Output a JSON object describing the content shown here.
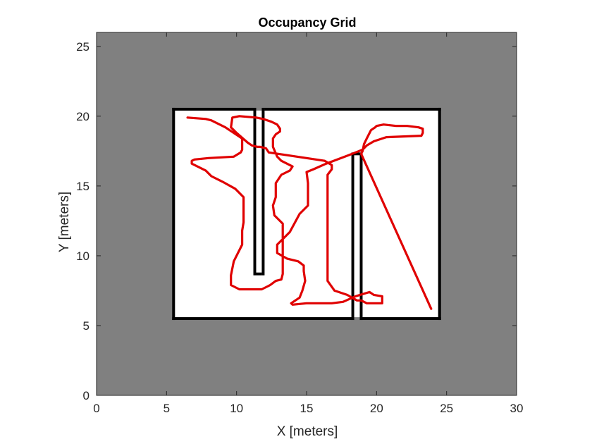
{
  "chart_data": {
    "type": "line",
    "title": "Occupancy Grid",
    "xlabel": "X [meters]",
    "ylabel": "Y [meters]",
    "xlim": [
      0,
      30
    ],
    "ylim": [
      0,
      26
    ],
    "xticks": [
      0,
      5,
      10,
      15,
      20,
      25,
      30
    ],
    "yticks": [
      0,
      5,
      10,
      15,
      20,
      25
    ],
    "grid": false,
    "colors": {
      "unknown": "#808080",
      "free": "#ffffff",
      "occupied": "#000000",
      "path": "#e00000"
    },
    "free_space": [
      5.6,
      5.6,
      24.4,
      20.4
    ],
    "walls": [
      [
        5.4,
        5.4,
        5.6,
        20.6
      ],
      [
        5.4,
        20.4,
        11.2,
        20.6
      ],
      [
        11.2,
        8.6,
        11.4,
        20.6
      ],
      [
        11.4,
        8.6,
        11.8,
        8.8
      ],
      [
        11.8,
        8.6,
        12.0,
        20.6
      ],
      [
        12.0,
        20.4,
        24.6,
        20.6
      ],
      [
        24.4,
        5.4,
        24.6,
        20.6
      ],
      [
        18.8,
        5.4,
        24.6,
        5.6
      ],
      [
        18.8,
        5.4,
        19.0,
        17.4
      ],
      [
        18.4,
        17.2,
        18.8,
        17.4
      ],
      [
        18.2,
        5.4,
        18.4,
        17.4
      ],
      [
        5.4,
        5.4,
        18.4,
        5.6
      ]
    ],
    "series": [
      {
        "x": [
          6.5,
          7.8,
          8.2,
          9.2,
          10.4,
          10.4,
          10.3,
          9.8,
          8.0,
          7.0,
          6.8,
          6.8,
          7.8,
          8.2,
          9.0,
          9.9,
          10.5,
          10.5,
          10.4,
          10.4,
          9.8,
          9.6,
          9.6,
          10.2,
          11.8,
          12.0,
          12.2,
          12.4,
          12.8,
          13.2,
          13.3,
          13.3,
          13.3,
          12.7,
          12.6,
          12.8,
          12.8,
          13.2,
          13.8,
          14.0,
          13.2,
          12.9,
          12.6,
          12.6,
          12.8,
          13.1,
          13.1,
          12.9,
          12.5,
          11.9,
          11.4,
          10.2,
          9.7,
          9.6,
          10.0,
          10.8,
          11.1,
          11.5,
          11.7,
          12.1,
          12.3,
          16.3,
          16.8,
          16.8,
          16.5,
          16.5,
          17.0,
          17.9,
          18.6,
          18.9,
          18.9,
          19.3,
          20.4,
          20.4,
          19.8,
          19.5,
          18.5,
          17.6,
          16.8,
          15.0,
          14.0,
          13.9,
          14.5,
          14.7,
          14.9,
          14.8,
          14.8,
          14.4,
          13.6,
          12.9,
          12.9,
          13.8,
          14.5,
          15.1,
          15.1,
          15.0,
          15.5,
          16.4,
          18.0,
          19.0,
          19.3,
          19.8,
          20.7,
          23.2,
          23.3,
          23.3,
          23.0,
          22.2,
          21.4,
          20.5,
          20.0,
          19.9,
          19.6,
          19.5,
          19.3,
          19.1,
          19.0,
          18.9,
          23.9
        ],
        "y": [
          19.9,
          19.8,
          19.7,
          19.2,
          18.4,
          17.6,
          17.4,
          17.1,
          17.0,
          16.9,
          16.8,
          16.6,
          16.1,
          15.7,
          15.3,
          14.8,
          14.2,
          12.4,
          11.8,
          10.8,
          9.6,
          8.6,
          7.9,
          7.6,
          7.6,
          7.7,
          7.8,
          7.9,
          8.2,
          8.3,
          8.7,
          11.0,
          12.3,
          12.9,
          13.6,
          14.2,
          15.2,
          15.8,
          16.1,
          16.4,
          16.8,
          17.1,
          17.8,
          18.4,
          18.7,
          18.9,
          19.1,
          19.4,
          19.6,
          19.8,
          19.9,
          20.0,
          19.9,
          19.2,
          18.8,
          18.1,
          17.9,
          17.8,
          17.8,
          17.7,
          17.4,
          16.8,
          16.5,
          16.2,
          15.8,
          8.2,
          7.5,
          7.2,
          6.8,
          6.8,
          6.8,
          6.6,
          6.6,
          7.1,
          7.2,
          7.4,
          7.1,
          6.7,
          6.6,
          6.6,
          6.5,
          6.6,
          7.0,
          7.5,
          8.2,
          8.9,
          9.3,
          9.6,
          9.8,
          10.2,
          10.8,
          11.7,
          13.0,
          13.6,
          15.2,
          16.0,
          16.2,
          16.6,
          17.2,
          17.6,
          17.9,
          18.2,
          18.5,
          18.6,
          18.8,
          19.1,
          19.2,
          19.3,
          19.3,
          19.4,
          19.3,
          19.2,
          19.0,
          18.8,
          18.4,
          18.0,
          17.5,
          17.3,
          6.2
        ]
      }
    ]
  }
}
